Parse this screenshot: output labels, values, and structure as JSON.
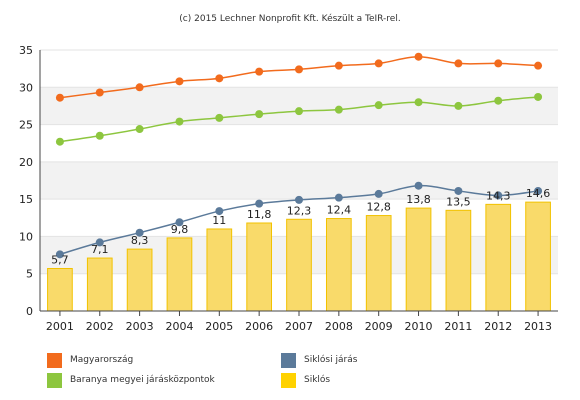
{
  "chart_data": {
    "type": "line",
    "title": "(c) 2015 Lechner Nonprofit Kft. Készült a TeIR-rel.",
    "xlabel": "",
    "ylabel": "",
    "ylim": [
      0,
      35
    ],
    "yticks": [
      0,
      5,
      10,
      15,
      20,
      25,
      30,
      35
    ],
    "grid": true,
    "legend_position": "bottom",
    "categories": [
      "2001",
      "2002",
      "2003",
      "2004",
      "2005",
      "2006",
      "2007",
      "2008",
      "2009",
      "2010",
      "2011",
      "2012",
      "2013"
    ],
    "series": [
      {
        "name": "Magyarország",
        "kind": "line",
        "color": "#F26B1D",
        "values": [
          28.6,
          29.3,
          30.0,
          30.8,
          31.2,
          32.1,
          32.4,
          32.9,
          33.2,
          34.1,
          33.2,
          33.2,
          32.9
        ]
      },
      {
        "name": "Baranya megyei járásközpontok",
        "kind": "line",
        "color": "#8DC63F",
        "values": [
          22.7,
          23.5,
          24.4,
          25.4,
          25.9,
          26.4,
          26.8,
          27.0,
          27.6,
          28.0,
          27.5,
          28.2,
          28.7
        ]
      },
      {
        "name": "Siklósi járás",
        "kind": "line",
        "color": "#5B7A9A",
        "values": [
          7.6,
          9.2,
          10.5,
          11.9,
          13.4,
          14.4,
          14.9,
          15.2,
          15.7,
          16.8,
          16.1,
          15.5,
          16.1
        ]
      },
      {
        "name": "Siklós",
        "kind": "bar",
        "color": "#F9DA6A",
        "border": "#F2C200",
        "values": [
          5.7,
          7.1,
          8.3,
          9.8,
          11,
          11.8,
          12.3,
          12.4,
          12.8,
          13.8,
          13.5,
          14.3,
          14.6
        ],
        "labels": [
          "5,7",
          "7,1",
          "8,3",
          "9,8",
          "11",
          "11,8",
          "12,3",
          "12,4",
          "12,8",
          "13,8",
          "13,5",
          "14,3",
          "14,6"
        ]
      }
    ]
  },
  "legend": {
    "items": [
      {
        "label": "Magyarország",
        "color": "#F26B1D"
      },
      {
        "label": "Siklósi járás",
        "color": "#5B7A9A"
      },
      {
        "label": "Baranya megyei járásközpontok",
        "color": "#8DC63F"
      },
      {
        "label": "Siklós",
        "color": "#FFD200"
      }
    ]
  }
}
